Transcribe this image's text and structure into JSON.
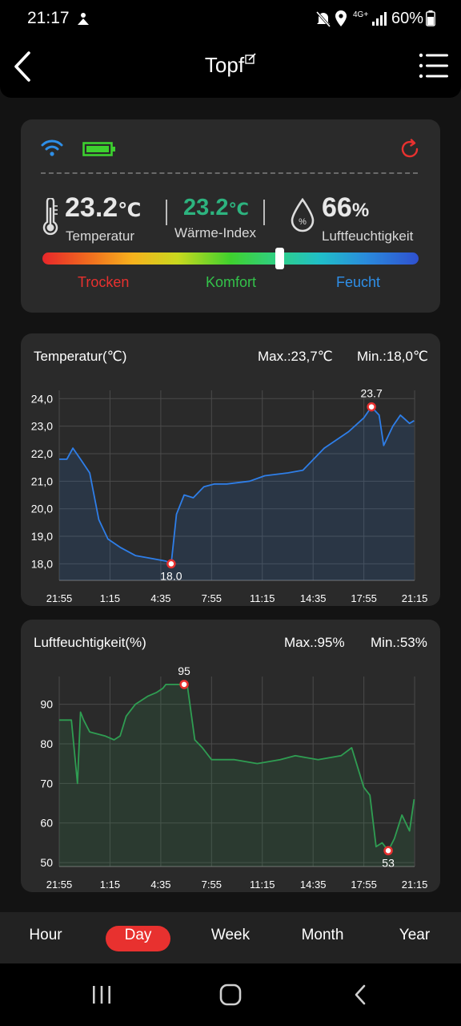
{
  "status_bar": {
    "time": "21:17",
    "network": "4G+",
    "battery": "60%"
  },
  "app_bar": {
    "title": "Topf"
  },
  "device_card": {
    "temperature": {
      "value": "23.2",
      "unit": "℃",
      "label": "Temperatur"
    },
    "heat_index": {
      "value": "23.2",
      "unit": "℃",
      "label": "Wärme-Index"
    },
    "humidity": {
      "value": "66",
      "unit": "%",
      "label": "Luftfeuchtigkeit"
    },
    "comfort_scale": {
      "dry": "Trocken",
      "comfort": "Komfort",
      "wet": "Feucht",
      "level": 0.63
    },
    "colors": {
      "wifi": "#2e8fe8",
      "battery": "#3dd12f",
      "refresh": "#e8312f",
      "heat_index": "#2db37f",
      "dry": "#e8312f",
      "comfort": "#33c24a",
      "wet": "#2e8fe8"
    }
  },
  "temp_chart": {
    "title": "Temperatur(℃)",
    "max_label": "Max.:23,7℃",
    "min_label": "Min.:18,0℃",
    "chart_data": {
      "type": "area",
      "color": "#2e7ee8",
      "x_ticks": [
        "21:55",
        "1:15",
        "4:35",
        "7:55",
        "11:15",
        "14:35",
        "17:55",
        "21:15"
      ],
      "y_ticks": [
        "24,0",
        "23,0",
        "22,0",
        "21,0",
        "20,0",
        "19,0",
        "18,0"
      ],
      "ylim": [
        17.4,
        24.3
      ],
      "x_hours": [
        0,
        0.33,
        0.5,
        0.9,
        1.4,
        2.0,
        2.6,
        3.2,
        4.0,
        5.0,
        6.0,
        7.0,
        7.35,
        7.7,
        8.2,
        8.8,
        9.5,
        10.2,
        11.0,
        12.5,
        13.5,
        15.0,
        16.0,
        17.4,
        19.0,
        20.0,
        20.5,
        21.0,
        21.3,
        21.9,
        22.4,
        23.0,
        23.3
      ],
      "values": [
        21.8,
        21.8,
        21.8,
        22.2,
        21.8,
        21.3,
        19.6,
        18.9,
        18.6,
        18.3,
        18.2,
        18.1,
        18.0,
        19.8,
        20.5,
        20.4,
        20.8,
        20.9,
        20.9,
        21.0,
        21.2,
        21.3,
        21.4,
        22.2,
        22.8,
        23.3,
        23.7,
        23.4,
        22.3,
        23.0,
        23.4,
        23.1,
        23.2
      ],
      "max_point": {
        "x": 20.5,
        "y": 23.7,
        "label": "23.7"
      },
      "min_point": {
        "x": 7.35,
        "y": 18.0,
        "label": "18.0"
      }
    }
  },
  "humidity_chart": {
    "title": "Luftfeuchtigkeit(%)",
    "max_label": "Max.:95%",
    "min_label": "Min.:53%",
    "chart_data": {
      "type": "area",
      "color": "#2f9d52",
      "x_ticks": [
        "21:55",
        "1:15",
        "4:35",
        "7:55",
        "11:15",
        "14:35",
        "17:55",
        "21:15"
      ],
      "y_ticks": [
        "90",
        "80",
        "70",
        "60",
        "50"
      ],
      "ylim": [
        49,
        97
      ],
      "x_hours": [
        0,
        0.4,
        0.8,
        1.2,
        1.4,
        1.6,
        2.0,
        3.0,
        3.6,
        4.0,
        4.4,
        5.0,
        5.8,
        6.4,
        6.8,
        7.0,
        7.9,
        8.4,
        8.9,
        9.4,
        10.0,
        11.5,
        13.0,
        14.5,
        15.5,
        17.0,
        18.5,
        19.2,
        20.0,
        20.4,
        20.8,
        21.2,
        21.6,
        22.0,
        22.5,
        23.0,
        23.3
      ],
      "values": [
        86,
        86,
        86,
        70,
        88,
        86,
        83,
        82,
        81,
        82,
        87,
        90,
        92,
        93,
        94,
        95,
        95,
        95,
        81,
        79,
        76,
        76,
        75,
        76,
        77,
        76,
        77,
        79,
        69,
        67,
        54,
        55,
        53,
        56,
        62,
        58,
        66
      ],
      "max_point": {
        "x": 8.2,
        "y": 95,
        "label": "95"
      },
      "min_point": {
        "x": 21.6,
        "y": 53,
        "label": "53"
      }
    }
  },
  "range_tabs": {
    "items": [
      "Hour",
      "Day",
      "Week",
      "Month",
      "Year"
    ],
    "active": "Day"
  }
}
